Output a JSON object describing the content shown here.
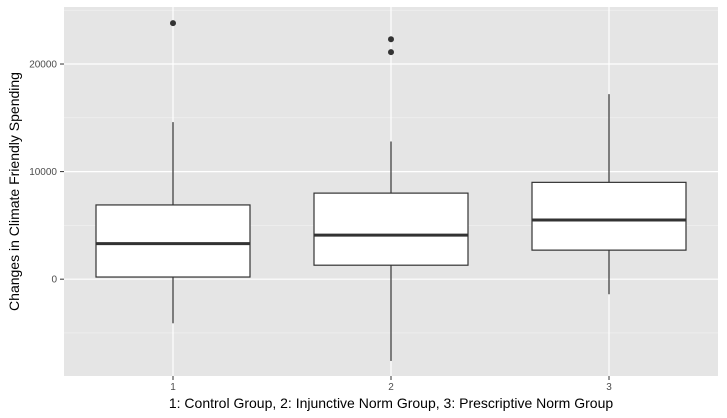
{
  "chart_data": {
    "type": "boxplot",
    "xlabel": "1: Control Group, 2: Injunctive Norm Group, 3: Prescriptive Norm Group",
    "ylabel": "Changes in Climate Friendly Spending",
    "categories": [
      "1",
      "2",
      "3"
    ],
    "y_ticks": [
      0,
      10000,
      20000
    ],
    "y_tick_labels": [
      "0",
      "10000",
      "20000"
    ],
    "ylim": [
      -9000,
      25300
    ],
    "grid": true,
    "boxes": [
      {
        "category": "1",
        "whisker_low": -4100,
        "q1": 200,
        "median": 3300,
        "q3": 6900,
        "whisker_high": 14600,
        "outliers": [
          23800
        ]
      },
      {
        "category": "2",
        "whisker_low": -7600,
        "q1": 1300,
        "median": 4100,
        "q3": 8000,
        "whisker_high": 12800,
        "outliers": [
          21100,
          22300
        ]
      },
      {
        "category": "3",
        "whisker_low": -1400,
        "q1": 2700,
        "median": 5500,
        "q3": 9000,
        "whisker_high": 17200,
        "outliers": []
      }
    ],
    "colors": {
      "panel_background": "#e5e5e5",
      "grid_major": "#ffffff",
      "grid_minor": "#f2f2f2",
      "box_fill": "#ffffff",
      "box_stroke": "#333333",
      "outlier": "#333333"
    }
  }
}
